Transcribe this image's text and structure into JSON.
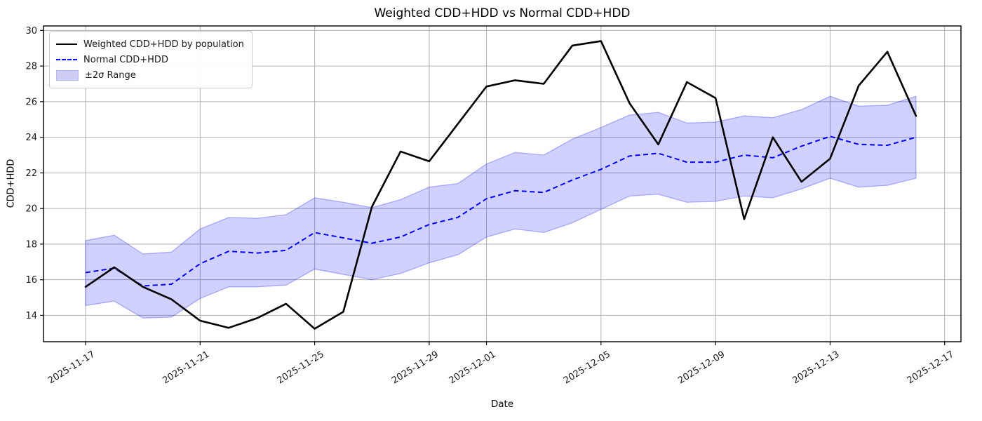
{
  "title": "Weighted CDD+HDD vs Normal CDD+HDD",
  "axes": {
    "xlabel": "Date",
    "ylabel": "CDD+HDD",
    "x_tick_labels": [
      "2025-11-17",
      "2025-11-21",
      "2025-11-25",
      "2025-11-29",
      "2025-12-01",
      "2025-12-05",
      "2025-12-09",
      "2025-12-13",
      "2025-12-17"
    ],
    "y_ticks": [
      14,
      16,
      18,
      20,
      22,
      24,
      26,
      28,
      30
    ],
    "grid_color": "#b0b0b0",
    "spine_color": "#000000"
  },
  "legend": {
    "items": [
      {
        "label": "Weighted CDD+HDD by population",
        "swatch": "solid-black-line"
      },
      {
        "label": "Normal CDD+HDD",
        "swatch": "dashed-blue-line"
      },
      {
        "label": "±2σ Range",
        "swatch": "band-patch"
      }
    ]
  },
  "colors": {
    "weighted_line": "#000000",
    "normal_line": "#0000ff",
    "band_fill": "rgba(0,0,255,0.18)",
    "band_edge": "rgba(0,0,255,0.28)"
  },
  "chart_data": {
    "type": "line",
    "title": "Weighted CDD+HDD vs Normal CDD+HDD",
    "xlabel": "Date",
    "ylabel": "CDD+HDD",
    "grid": true,
    "legend_position": "upper left",
    "ylim": [
      12.52,
      30.25
    ],
    "xlim_day_index": [
      -1.47,
      30.57
    ],
    "x": [
      "2025-11-17",
      "2025-11-18",
      "2025-11-19",
      "2025-11-20",
      "2025-11-21",
      "2025-11-22",
      "2025-11-23",
      "2025-11-24",
      "2025-11-25",
      "2025-11-26",
      "2025-11-27",
      "2025-11-28",
      "2025-11-29",
      "2025-11-30",
      "2025-12-01",
      "2025-12-02",
      "2025-12-03",
      "2025-12-04",
      "2025-12-05",
      "2025-12-06",
      "2025-12-07",
      "2025-12-08",
      "2025-12-09",
      "2025-12-10",
      "2025-12-11",
      "2025-12-12",
      "2025-12-13",
      "2025-12-14",
      "2025-12-15",
      "2025-12-16"
    ],
    "series": [
      {
        "name": "Weighted CDD+HDD by population",
        "style": "solid",
        "color": "#000000",
        "values": [
          15.6,
          16.7,
          15.6,
          14.9,
          13.7,
          13.3,
          13.85,
          14.65,
          13.25,
          14.2,
          20.1,
          23.2,
          22.65,
          24.75,
          26.85,
          27.2,
          27.0,
          29.15,
          29.4,
          25.9,
          23.6,
          27.1,
          26.2,
          19.4,
          24.0,
          21.5,
          22.8,
          26.9,
          28.8,
          25.2
        ]
      },
      {
        "name": "Normal CDD+HDD",
        "style": "dashed",
        "color": "#0000ff",
        "values": [
          16.4,
          16.65,
          15.65,
          15.75,
          16.9,
          17.6,
          17.5,
          17.65,
          18.65,
          18.35,
          18.05,
          18.4,
          19.1,
          19.5,
          20.55,
          21.0,
          20.9,
          21.6,
          22.2,
          22.95,
          23.1,
          22.6,
          22.6,
          23.0,
          22.85,
          23.5,
          24.05,
          23.6,
          23.55,
          24.0
        ]
      },
      {
        "name": "±2σ Range",
        "style": "band",
        "upper": [
          18.2,
          18.5,
          17.45,
          17.55,
          18.85,
          19.5,
          19.45,
          19.65,
          20.6,
          20.35,
          20.05,
          20.5,
          21.2,
          21.4,
          22.5,
          23.15,
          23.0,
          23.9,
          24.55,
          25.25,
          25.4,
          24.8,
          24.85,
          25.2,
          25.1,
          25.55,
          26.3,
          25.75,
          25.8,
          26.3
        ],
        "lower": [
          14.55,
          14.8,
          13.85,
          13.9,
          14.95,
          15.6,
          15.6,
          15.7,
          16.6,
          16.3,
          16.0,
          16.35,
          16.95,
          17.4,
          18.4,
          18.85,
          18.65,
          19.2,
          19.95,
          20.7,
          20.8,
          20.35,
          20.4,
          20.7,
          20.6,
          21.1,
          21.7,
          21.2,
          21.3,
          21.7
        ]
      }
    ]
  }
}
